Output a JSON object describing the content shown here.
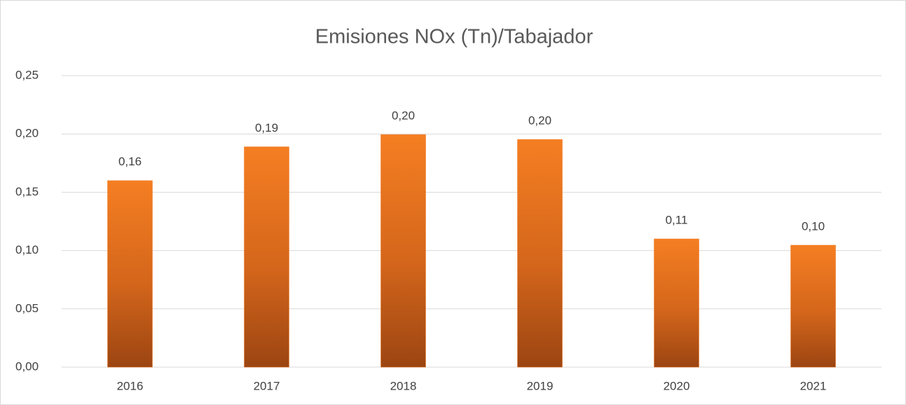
{
  "chart_data": {
    "type": "bar",
    "title": "Emisiones  NOx (Tn)/Tabajador",
    "categories": [
      "2016",
      "2017",
      "2018",
      "2019",
      "2020",
      "2021"
    ],
    "values": [
      0.16,
      0.189,
      0.1995,
      0.1953,
      0.11,
      0.1046
    ],
    "value_labels": [
      "0,16",
      "0,19",
      "0,20",
      "0,20",
      "0,11",
      "0,10"
    ],
    "color": "#f07a22",
    "ylim": [
      0,
      0.25
    ],
    "yticks": [
      {
        "value": 0,
        "label": "0,00"
      },
      {
        "value": 0.05,
        "label": "0,05"
      },
      {
        "value": 0.1,
        "label": "0,10"
      },
      {
        "value": 0.15,
        "label": "0,15"
      },
      {
        "value": 0.2,
        "label": "0,20"
      },
      {
        "value": 0.25,
        "label": "0,25"
      }
    ],
    "grid": true
  }
}
